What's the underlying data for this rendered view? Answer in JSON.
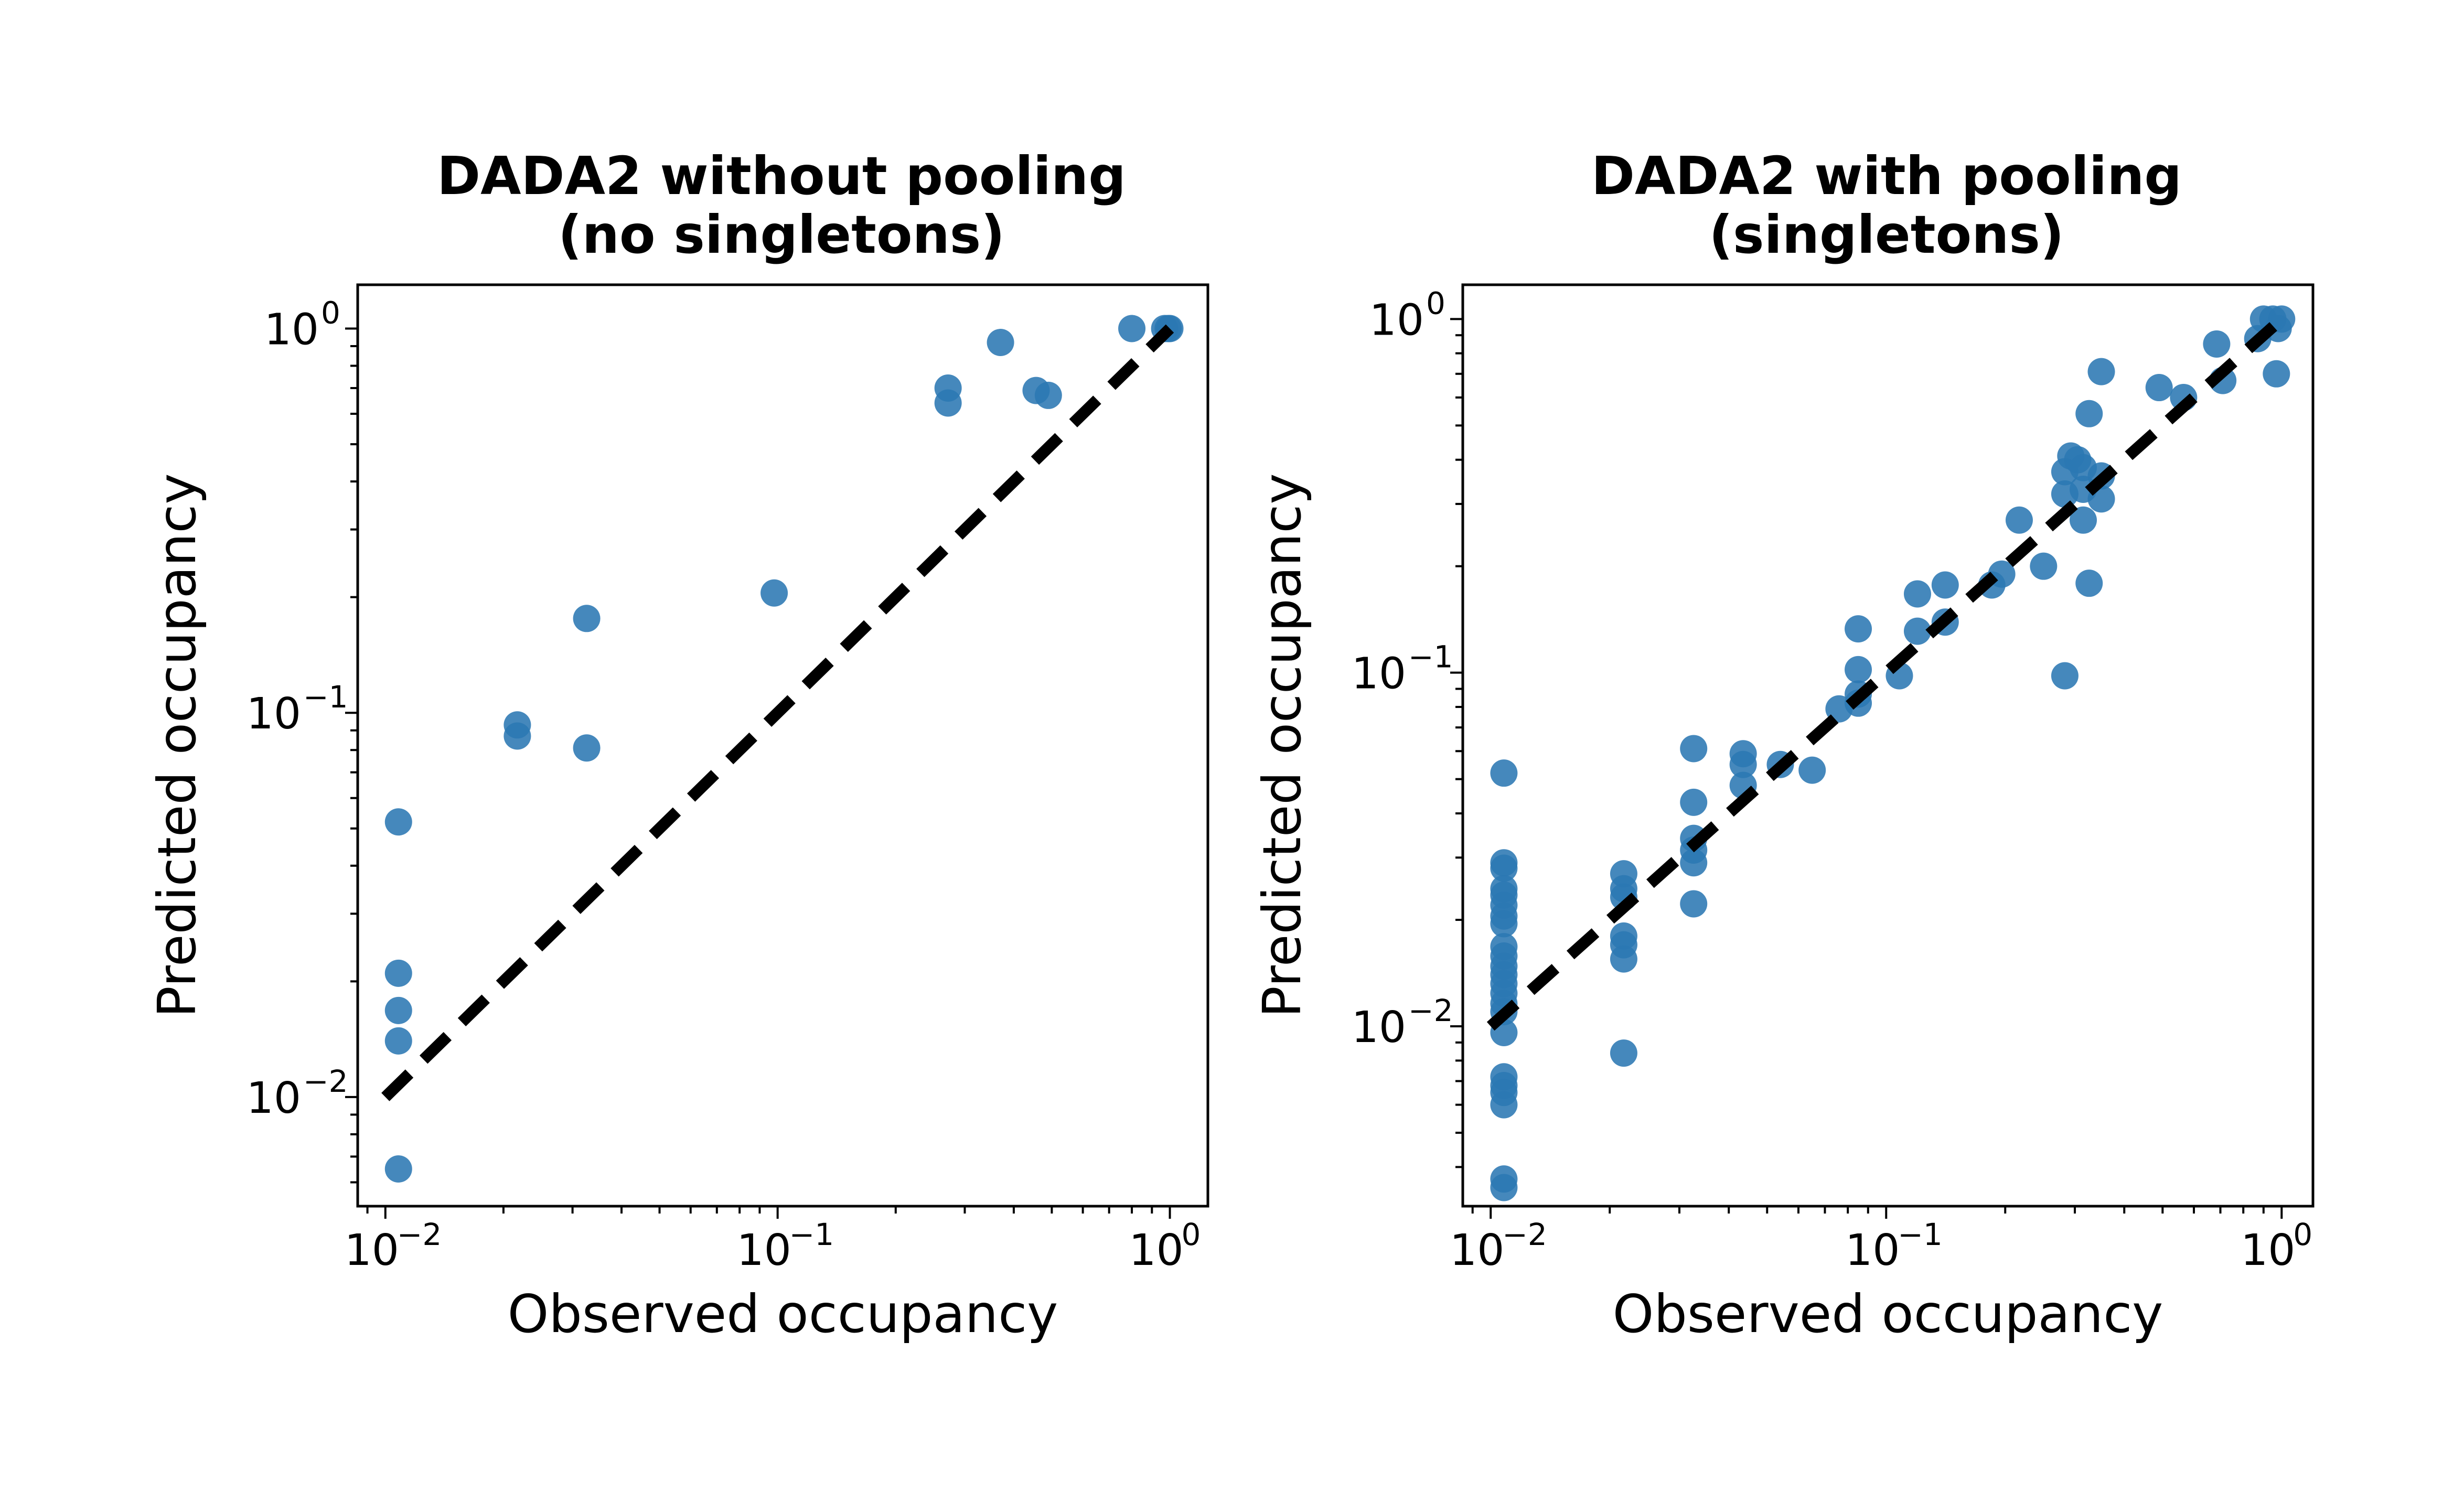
{
  "figure": {
    "marker_color": "#2b77b3",
    "diagonal_color": "#000000"
  },
  "chart_data": [
    {
      "type": "scatter",
      "title_lines": [
        "DADA2 without pooling",
        "(no singletons)"
      ],
      "xlabel": "Observed occupancy",
      "ylabel": "Predicted occupancy",
      "xscale": "log",
      "yscale": "log",
      "xlim": [
        0.0085,
        1.25
      ],
      "ylim": [
        0.0052,
        1.3
      ],
      "xticks": [
        {
          "base": "10",
          "exp": "−2",
          "value": 0.01
        },
        {
          "base": "10",
          "exp": "−1",
          "value": 0.1
        },
        {
          "base": "10",
          "exp": "0",
          "value": 1
        }
      ],
      "yticks": [
        {
          "base": "10",
          "exp": "−2",
          "value": 0.01
        },
        {
          "base": "10",
          "exp": "−1",
          "value": 0.1
        },
        {
          "base": "10",
          "exp": "0",
          "value": 1
        }
      ],
      "reference_line": {
        "style": "dashed",
        "from": [
          0.01,
          0.01
        ],
        "to": [
          1,
          1
        ]
      },
      "points": [
        [
          0.0108,
          0.052
        ],
        [
          0.0108,
          0.021
        ],
        [
          0.0108,
          0.0168
        ],
        [
          0.0108,
          0.014
        ],
        [
          0.0108,
          0.0065
        ],
        [
          0.0217,
          0.093
        ],
        [
          0.0217,
          0.087
        ],
        [
          0.0326,
          0.176
        ],
        [
          0.0326,
          0.081
        ],
        [
          0.098,
          0.205
        ],
        [
          0.272,
          0.7
        ],
        [
          0.272,
          0.64
        ],
        [
          0.37,
          0.92
        ],
        [
          0.456,
          0.69
        ],
        [
          0.49,
          0.67
        ],
        [
          0.8,
          1.0
        ],
        [
          0.97,
          1.0
        ],
        [
          0.99,
          1.0
        ],
        [
          1.0,
          1.0
        ]
      ]
    },
    {
      "type": "scatter",
      "title_lines": [
        "DADA2 with pooling",
        "(singletons)"
      ],
      "xlabel": "Observed occupancy",
      "ylabel": "Predicted occupancy",
      "xscale": "log",
      "yscale": "log",
      "xlim": [
        0.0085,
        1.2
      ],
      "ylim": [
        0.0031,
        1.25
      ],
      "xticks": [
        {
          "base": "10",
          "exp": "−2",
          "value": 0.01
        },
        {
          "base": "10",
          "exp": "−1",
          "value": 0.1
        },
        {
          "base": "10",
          "exp": "0",
          "value": 1
        }
      ],
      "yticks": [
        {
          "base": "10",
          "exp": "−2",
          "value": 0.01
        },
        {
          "base": "10",
          "exp": "−1",
          "value": 0.1
        },
        {
          "base": "10",
          "exp": "0",
          "value": 1
        }
      ],
      "reference_line": {
        "style": "dashed",
        "from": [
          0.01,
          0.01
        ],
        "to": [
          1,
          1
        ]
      },
      "points": [
        [
          0.0108,
          0.052
        ],
        [
          0.0108,
          0.029
        ],
        [
          0.0108,
          0.028
        ],
        [
          0.0108,
          0.0245
        ],
        [
          0.0108,
          0.0235
        ],
        [
          0.0108,
          0.022
        ],
        [
          0.0108,
          0.0205
        ],
        [
          0.0108,
          0.0195
        ],
        [
          0.0108,
          0.0168
        ],
        [
          0.0108,
          0.0158
        ],
        [
          0.0108,
          0.0148
        ],
        [
          0.0108,
          0.014
        ],
        [
          0.0108,
          0.0132
        ],
        [
          0.0108,
          0.0124
        ],
        [
          0.0108,
          0.0116
        ],
        [
          0.0108,
          0.011
        ],
        [
          0.0108,
          0.0096
        ],
        [
          0.0108,
          0.0072
        ],
        [
          0.0108,
          0.0068
        ],
        [
          0.0108,
          0.0065
        ],
        [
          0.0108,
          0.006
        ],
        [
          0.0108,
          0.0037
        ],
        [
          0.0108,
          0.0035
        ],
        [
          0.0217,
          0.027
        ],
        [
          0.0217,
          0.0245
        ],
        [
          0.0217,
          0.0232
        ],
        [
          0.0217,
          0.018
        ],
        [
          0.0217,
          0.017
        ],
        [
          0.0217,
          0.0155
        ],
        [
          0.0217,
          0.0084
        ],
        [
          0.0326,
          0.061
        ],
        [
          0.0326,
          0.043
        ],
        [
          0.0326,
          0.034
        ],
        [
          0.0326,
          0.0315
        ],
        [
          0.0326,
          0.029
        ],
        [
          0.0326,
          0.0222
        ],
        [
          0.0435,
          0.059
        ],
        [
          0.0435,
          0.055
        ],
        [
          0.0435,
          0.048
        ],
        [
          0.054,
          0.055
        ],
        [
          0.065,
          0.053
        ],
        [
          0.076,
          0.079
        ],
        [
          0.085,
          0.133
        ],
        [
          0.085,
          0.102
        ],
        [
          0.085,
          0.087
        ],
        [
          0.085,
          0.082
        ],
        [
          0.108,
          0.098
        ],
        [
          0.12,
          0.167
        ],
        [
          0.12,
          0.131
        ],
        [
          0.141,
          0.177
        ],
        [
          0.141,
          0.139
        ],
        [
          0.185,
          0.177
        ],
        [
          0.196,
          0.19
        ],
        [
          0.217,
          0.27
        ],
        [
          0.25,
          0.2
        ],
        [
          0.283,
          0.37
        ],
        [
          0.283,
          0.32
        ],
        [
          0.283,
          0.098
        ],
        [
          0.293,
          0.41
        ],
        [
          0.305,
          0.4
        ],
        [
          0.315,
          0.38
        ],
        [
          0.315,
          0.33
        ],
        [
          0.315,
          0.27
        ],
        [
          0.326,
          0.54
        ],
        [
          0.326,
          0.179
        ],
        [
          0.35,
          0.36
        ],
        [
          0.35,
          0.31
        ],
        [
          0.35,
          0.71
        ],
        [
          0.49,
          0.64
        ],
        [
          0.565,
          0.6
        ],
        [
          0.685,
          0.85
        ],
        [
          0.71,
          0.67
        ],
        [
          0.87,
          0.88
        ],
        [
          0.9,
          1.0
        ],
        [
          0.95,
          1.0
        ],
        [
          0.97,
          0.7
        ],
        [
          0.98,
          0.94
        ],
        [
          1.0,
          1.0
        ]
      ]
    }
  ]
}
